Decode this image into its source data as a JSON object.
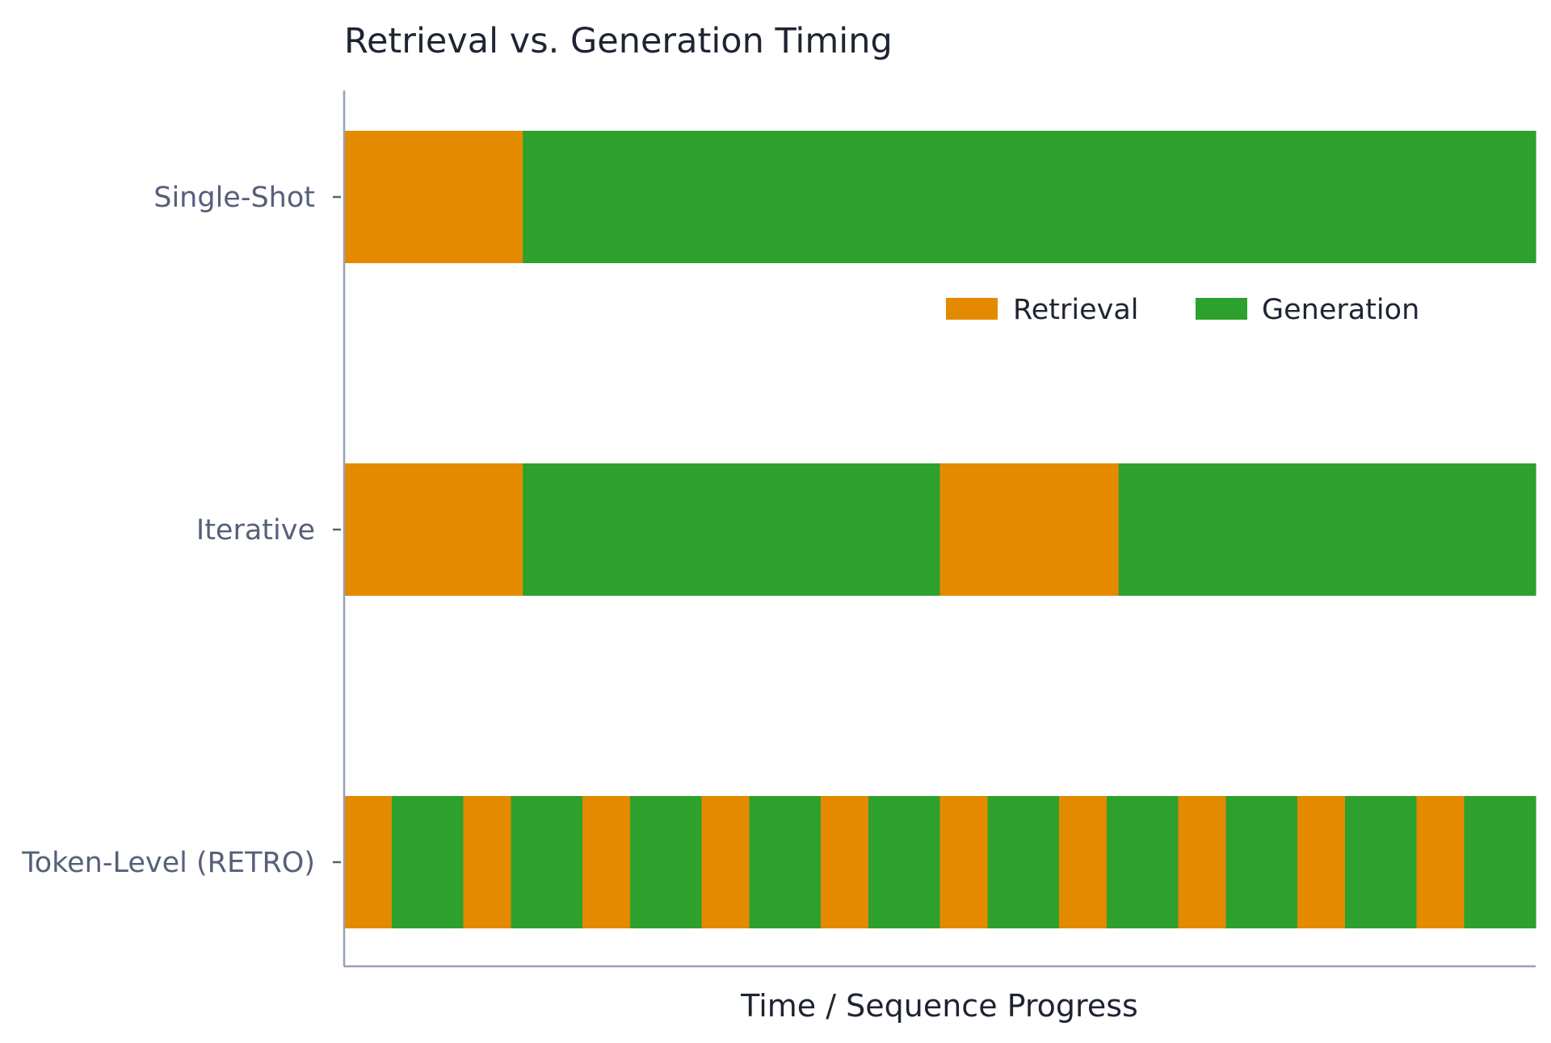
{
  "chart_data": {
    "type": "bar",
    "orientation": "horizontal",
    "stacked": true,
    "title": "Retrieval vs. Generation Timing",
    "xlabel": "Time / Sequence Progress",
    "ylabel": "",
    "xlim": [
      0,
      1
    ],
    "grid": false,
    "legend_position": "right",
    "categories": [
      "Single-Shot",
      "Iterative",
      "Token-Level (RETRO)"
    ],
    "phases": [
      {
        "name": "Retrieval",
        "color": "#E38A00"
      },
      {
        "name": "Generation",
        "color": "#2EA02E"
      }
    ],
    "rows": [
      {
        "category": "Single-Shot",
        "segments": [
          {
            "phase": "Retrieval",
            "start": 0.0,
            "end": 0.15
          },
          {
            "phase": "Generation",
            "start": 0.15,
            "end": 1.0
          }
        ]
      },
      {
        "category": "Iterative",
        "segments": [
          {
            "phase": "Retrieval",
            "start": 0.0,
            "end": 0.15
          },
          {
            "phase": "Generation",
            "start": 0.15,
            "end": 0.5
          },
          {
            "phase": "Retrieval",
            "start": 0.5,
            "end": 0.65
          },
          {
            "phase": "Generation",
            "start": 0.65,
            "end": 1.0
          }
        ]
      },
      {
        "category": "Token-Level (RETRO)",
        "segments": [
          {
            "phase": "Retrieval",
            "start": 0.0,
            "end": 0.04
          },
          {
            "phase": "Generation",
            "start": 0.04,
            "end": 0.1
          },
          {
            "phase": "Retrieval",
            "start": 0.1,
            "end": 0.14
          },
          {
            "phase": "Generation",
            "start": 0.14,
            "end": 0.2
          },
          {
            "phase": "Retrieval",
            "start": 0.2,
            "end": 0.24
          },
          {
            "phase": "Generation",
            "start": 0.24,
            "end": 0.3
          },
          {
            "phase": "Retrieval",
            "start": 0.3,
            "end": 0.34
          },
          {
            "phase": "Generation",
            "start": 0.34,
            "end": 0.4
          },
          {
            "phase": "Retrieval",
            "start": 0.4,
            "end": 0.44
          },
          {
            "phase": "Generation",
            "start": 0.44,
            "end": 0.5
          },
          {
            "phase": "Retrieval",
            "start": 0.5,
            "end": 0.54
          },
          {
            "phase": "Generation",
            "start": 0.54,
            "end": 0.6
          },
          {
            "phase": "Retrieval",
            "start": 0.6,
            "end": 0.64
          },
          {
            "phase": "Generation",
            "start": 0.64,
            "end": 0.7
          },
          {
            "phase": "Retrieval",
            "start": 0.7,
            "end": 0.74
          },
          {
            "phase": "Generation",
            "start": 0.74,
            "end": 0.8
          },
          {
            "phase": "Retrieval",
            "start": 0.8,
            "end": 0.84
          },
          {
            "phase": "Generation",
            "start": 0.84,
            "end": 0.9
          },
          {
            "phase": "Retrieval",
            "start": 0.9,
            "end": 0.94
          },
          {
            "phase": "Generation",
            "start": 0.94,
            "end": 1.0
          }
        ]
      }
    ],
    "axis_color": "#97A1B8"
  }
}
